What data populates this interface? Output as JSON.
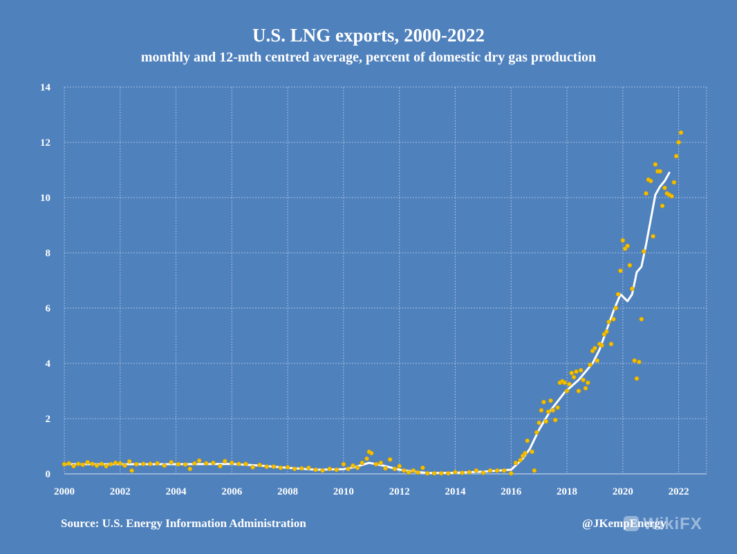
{
  "header": {
    "title": "U.S. LNG exports, 2000-2022",
    "subtitle": "monthly and 12-mth centred average, percent of domestic dry gas production"
  },
  "footer": {
    "source": "Source: U.S. Energy Information Administration",
    "credit": "@JKempEnergy",
    "watermark": "WikiFX"
  },
  "colors": {
    "background": "#4f81bd",
    "monthly_points": "#f5c000",
    "average_line": "#ffffff",
    "grid": "#a9c0de"
  },
  "chart_data": {
    "type": "scatter",
    "title": "U.S. LNG exports, 2000-2022",
    "subtitle": "monthly and 12-mth centred average, percent of domestic dry gas production",
    "xlabel": "",
    "ylabel": "",
    "xlim": [
      "2000-01",
      "2023-01"
    ],
    "ylim": [
      0,
      14
    ],
    "x_ticks": [
      "2000",
      "2002",
      "2004",
      "2006",
      "2008",
      "2010",
      "2012",
      "2014",
      "2016",
      "2018",
      "2020",
      "2022"
    ],
    "y_ticks": [
      0,
      2,
      4,
      6,
      8,
      10,
      12,
      14
    ],
    "grid": true,
    "legend": "none",
    "series": [
      {
        "style": "points",
        "color": "#f5c000",
        "points": [
          [
            "2000-01",
            0.35
          ],
          [
            "2000-03",
            0.38
          ],
          [
            "2000-05",
            0.28
          ],
          [
            "2000-07",
            0.36
          ],
          [
            "2000-09",
            0.33
          ],
          [
            "2000-11",
            0.42
          ],
          [
            "2001-01",
            0.36
          ],
          [
            "2001-03",
            0.3
          ],
          [
            "2001-05",
            0.36
          ],
          [
            "2001-07",
            0.28
          ],
          [
            "2001-09",
            0.35
          ],
          [
            "2001-11",
            0.4
          ],
          [
            "2002-01",
            0.38
          ],
          [
            "2002-03",
            0.3
          ],
          [
            "2002-05",
            0.45
          ],
          [
            "2002-06",
            0.12
          ],
          [
            "2002-08",
            0.35
          ],
          [
            "2002-11",
            0.36
          ],
          [
            "2003-02",
            0.36
          ],
          [
            "2003-05",
            0.38
          ],
          [
            "2003-08",
            0.3
          ],
          [
            "2003-11",
            0.42
          ],
          [
            "2004-02",
            0.35
          ],
          [
            "2004-05",
            0.34
          ],
          [
            "2004-07",
            0.18
          ],
          [
            "2004-09",
            0.38
          ],
          [
            "2004-11",
            0.48
          ],
          [
            "2005-02",
            0.38
          ],
          [
            "2005-05",
            0.4
          ],
          [
            "2005-08",
            0.28
          ],
          [
            "2005-10",
            0.46
          ],
          [
            "2006-01",
            0.4
          ],
          [
            "2006-04",
            0.36
          ],
          [
            "2006-07",
            0.36
          ],
          [
            "2006-10",
            0.24
          ],
          [
            "2007-01",
            0.32
          ],
          [
            "2007-04",
            0.26
          ],
          [
            "2007-07",
            0.26
          ],
          [
            "2007-10",
            0.22
          ],
          [
            "2008-01",
            0.24
          ],
          [
            "2008-04",
            0.18
          ],
          [
            "2008-07",
            0.2
          ],
          [
            "2008-10",
            0.22
          ],
          [
            "2009-01",
            0.15
          ],
          [
            "2009-04",
            0.12
          ],
          [
            "2009-07",
            0.18
          ],
          [
            "2009-10",
            0.15
          ],
          [
            "2010-01",
            0.35
          ],
          [
            "2010-03",
            0.18
          ],
          [
            "2010-05",
            0.3
          ],
          [
            "2010-07",
            0.22
          ],
          [
            "2010-09",
            0.4
          ],
          [
            "2010-11",
            0.55
          ],
          [
            "2010-12",
            0.8
          ],
          [
            "2011-01",
            0.75
          ],
          [
            "2011-03",
            0.35
          ],
          [
            "2011-05",
            0.4
          ],
          [
            "2011-07",
            0.2
          ],
          [
            "2011-09",
            0.52
          ],
          [
            "2011-11",
            0.18
          ],
          [
            "2012-01",
            0.28
          ],
          [
            "2012-03",
            0.12
          ],
          [
            "2012-05",
            0.05
          ],
          [
            "2012-07",
            0.12
          ],
          [
            "2012-09",
            0.05
          ],
          [
            "2012-11",
            0.22
          ],
          [
            "2013-01",
            0.02
          ],
          [
            "2013-04",
            0.02
          ],
          [
            "2013-07",
            0.02
          ],
          [
            "2013-10",
            0.02
          ],
          [
            "2014-01",
            0.06
          ],
          [
            "2014-04",
            0.04
          ],
          [
            "2014-07",
            0.06
          ],
          [
            "2014-10",
            0.12
          ],
          [
            "2015-01",
            0.04
          ],
          [
            "2015-04",
            0.12
          ],
          [
            "2015-07",
            0.12
          ],
          [
            "2015-10",
            0.12
          ],
          [
            "2016-01",
            0.02
          ],
          [
            "2016-03",
            0.4
          ],
          [
            "2016-05",
            0.5
          ],
          [
            "2016-06",
            0.65
          ],
          [
            "2016-07",
            0.75
          ],
          [
            "2016-08",
            1.2
          ],
          [
            "2016-10",
            0.8
          ],
          [
            "2016-11",
            0.12
          ],
          [
            "2016-12",
            1.5
          ],
          [
            "2017-01",
            1.85
          ],
          [
            "2017-02",
            2.3
          ],
          [
            "2017-03",
            2.6
          ],
          [
            "2017-04",
            1.9
          ],
          [
            "2017-05",
            2.25
          ],
          [
            "2017-06",
            2.65
          ],
          [
            "2017-07",
            2.3
          ],
          [
            "2017-08",
            1.95
          ],
          [
            "2017-09",
            2.4
          ],
          [
            "2017-10",
            3.3
          ],
          [
            "2017-11",
            3.35
          ],
          [
            "2017-12",
            3.3
          ],
          [
            "2018-01",
            3.0
          ],
          [
            "2018-02",
            3.25
          ],
          [
            "2018-03",
            3.65
          ],
          [
            "2018-04",
            3.5
          ],
          [
            "2018-05",
            3.7
          ],
          [
            "2018-06",
            3.0
          ],
          [
            "2018-07",
            3.75
          ],
          [
            "2018-08",
            3.4
          ],
          [
            "2018-09",
            3.1
          ],
          [
            "2018-10",
            3.3
          ],
          [
            "2018-11",
            3.95
          ],
          [
            "2018-12",
            4.45
          ],
          [
            "2019-01",
            4.55
          ],
          [
            "2019-02",
            4.1
          ],
          [
            "2019-03",
            4.7
          ],
          [
            "2019-04",
            4.65
          ],
          [
            "2019-05",
            5.05
          ],
          [
            "2019-06",
            5.15
          ],
          [
            "2019-07",
            5.5
          ],
          [
            "2019-08",
            4.7
          ],
          [
            "2019-09",
            5.6
          ],
          [
            "2019-10",
            6.0
          ],
          [
            "2019-11",
            6.5
          ],
          [
            "2019-12",
            7.35
          ],
          [
            "2020-01",
            8.45
          ],
          [
            "2020-02",
            8.15
          ],
          [
            "2020-03",
            8.25
          ],
          [
            "2020-04",
            7.55
          ],
          [
            "2020-05",
            6.7
          ],
          [
            "2020-06",
            4.1
          ],
          [
            "2020-07",
            3.45
          ],
          [
            "2020-08",
            4.05
          ],
          [
            "2020-09",
            5.6
          ],
          [
            "2020-10",
            8.05
          ],
          [
            "2020-11",
            10.15
          ],
          [
            "2020-12",
            10.65
          ],
          [
            "2021-01",
            10.6
          ],
          [
            "2021-02",
            8.6
          ],
          [
            "2021-03",
            11.2
          ],
          [
            "2021-04",
            10.95
          ],
          [
            "2021-05",
            10.95
          ],
          [
            "2021-06",
            9.7
          ],
          [
            "2021-07",
            10.35
          ],
          [
            "2021-08",
            10.15
          ],
          [
            "2021-09",
            10.1
          ],
          [
            "2021-10",
            10.05
          ],
          [
            "2021-11",
            10.55
          ],
          [
            "2021-12",
            11.5
          ],
          [
            "2022-01",
            12.0
          ],
          [
            "2022-02",
            12.35
          ]
        ]
      },
      {
        "style": "line",
        "color": "#ffffff",
        "points": [
          [
            "2000-01",
            0.35
          ],
          [
            "2002-01",
            0.35
          ],
          [
            "2004-01",
            0.35
          ],
          [
            "2006-01",
            0.36
          ],
          [
            "2007-01",
            0.3
          ],
          [
            "2008-01",
            0.22
          ],
          [
            "2009-01",
            0.15
          ],
          [
            "2010-01",
            0.17
          ],
          [
            "2010-06",
            0.25
          ],
          [
            "2010-12",
            0.4
          ],
          [
            "2011-06",
            0.3
          ],
          [
            "2012-01",
            0.15
          ],
          [
            "2012-06",
            0.1
          ],
          [
            "2013-01",
            0.03
          ],
          [
            "2014-01",
            0.04
          ],
          [
            "2015-01",
            0.08
          ],
          [
            "2016-01",
            0.15
          ],
          [
            "2016-06",
            0.55
          ],
          [
            "2016-09",
            0.9
          ],
          [
            "2017-01",
            1.6
          ],
          [
            "2017-06",
            2.3
          ],
          [
            "2017-12",
            2.95
          ],
          [
            "2018-06",
            3.4
          ],
          [
            "2018-12",
            4.0
          ],
          [
            "2019-03",
            4.5
          ],
          [
            "2019-06",
            5.2
          ],
          [
            "2019-09",
            5.9
          ],
          [
            "2019-12",
            6.5
          ],
          [
            "2020-03",
            6.25
          ],
          [
            "2020-05",
            6.5
          ],
          [
            "2020-07",
            7.3
          ],
          [
            "2020-09",
            7.5
          ],
          [
            "2020-11",
            8.3
          ],
          [
            "2021-01",
            9.2
          ],
          [
            "2021-03",
            10.1
          ],
          [
            "2021-05",
            10.4
          ],
          [
            "2021-07",
            10.6
          ],
          [
            "2021-09",
            10.9
          ]
        ]
      }
    ]
  }
}
